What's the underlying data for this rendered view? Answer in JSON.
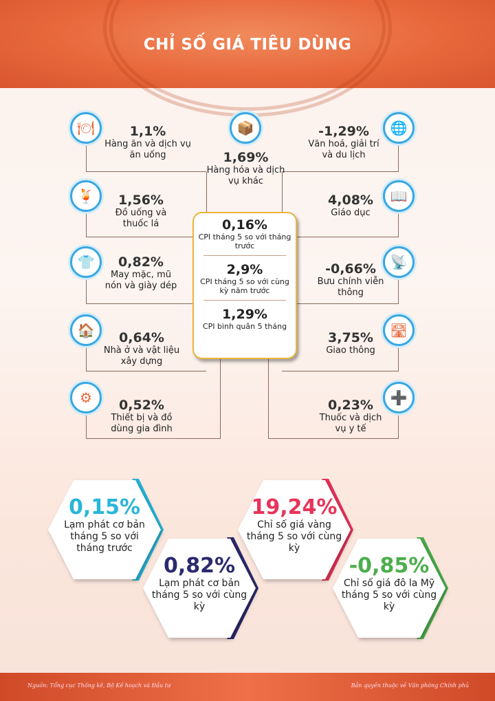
{
  "title": "CHỈ SỐ GIÁ TIÊU DÙNG",
  "left_items": [
    {
      "value": "1,1%",
      "label": "Hàng ăn và dịch vụ ăn uống",
      "icon": "food-tray-icon"
    },
    {
      "value": "1,56%",
      "label": "Đồ uống và thuốc lá",
      "icon": "drinks-icon"
    },
    {
      "value": "0,82%",
      "label": "May mặc, mũ nón và giày dép",
      "icon": "clothing-icon"
    },
    {
      "value": "0,64%",
      "label": "Nhà ở và vật liệu xây dựng",
      "icon": "house-icon"
    },
    {
      "value": "0,52%",
      "label": "Thiết bị và đồ dùng gia đình",
      "icon": "appliance-icon"
    }
  ],
  "top_item": {
    "value": "1,69%",
    "label": "Hàng hóa và dịch vụ khác",
    "icon": "goods-boxes-icon"
  },
  "right_items": [
    {
      "value": "-1,29%",
      "label": "Văn hoá, giải trí và du lịch",
      "icon": "globe-travel-icon"
    },
    {
      "value": "4,08%",
      "label": "Giáo dục",
      "icon": "book-icon"
    },
    {
      "value": "-0,66%",
      "label": "Bưu chính viễn thông",
      "icon": "satellite-dish-icon"
    },
    {
      "value": "3,75%",
      "label": "Giao thông",
      "icon": "road-icon"
    },
    {
      "value": "0,23%",
      "label": "Thuốc và dịch vụ y tế",
      "icon": "medical-kit-icon"
    }
  ],
  "center": [
    {
      "value": "0,16%",
      "label": "CPI tháng 5 so với tháng trước"
    },
    {
      "value": "2,9%",
      "label": "CPI tháng 5 so với cùng kỳ năm trước"
    },
    {
      "value": "1,29%",
      "label": "CPI bình quân 5 tháng"
    }
  ],
  "hexes": [
    {
      "value": "0,15%",
      "label": "Lạm phát cơ bản tháng 5 so với tháng trước",
      "color": "#29b6d8"
    },
    {
      "value": "0,82%",
      "label": "Lạm phát cơ bản tháng 5 so với cùng kỳ",
      "color": "#2b2a6e"
    },
    {
      "value": "19,24%",
      "label": "Chỉ số giá vàng tháng 5 so với cùng kỳ",
      "color": "#e8345a"
    },
    {
      "value": "-0,85%",
      "label": "Chỉ số giá đô la Mỹ tháng 5 so với cùng kỳ",
      "color": "#4cae4c"
    }
  ],
  "footer": {
    "source": "Nguồn: Tổng cục Thống kê, Bộ Kế hoạch và Đầu tư",
    "copyright": "Bản quyền thuộc về Văn phòng Chính phủ"
  }
}
